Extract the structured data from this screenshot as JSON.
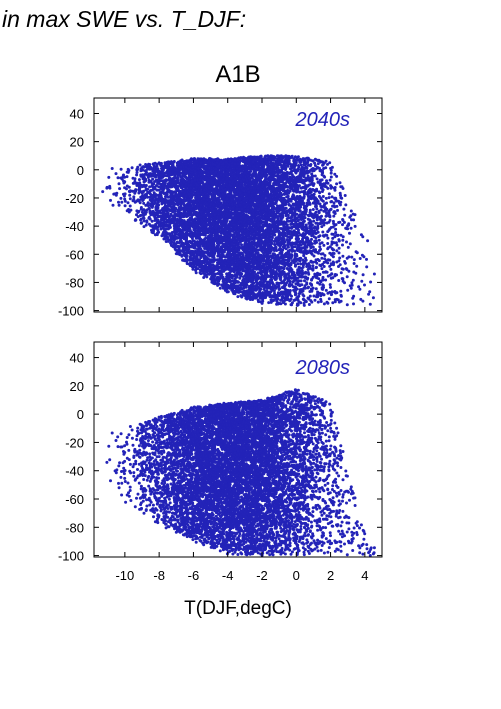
{
  "header_text": "in max SWE vs. T_DJF:",
  "colors": {
    "points": "#2323b8",
    "axes": "#000000"
  },
  "chart_data": [
    {
      "type": "scatter",
      "title": "A1B",
      "annotation": "2040s",
      "xlabel": "",
      "ylabel": "",
      "xlim": [
        -11.8,
        5.0
      ],
      "ylim": [
        -101,
        51
      ],
      "yticks": [
        40,
        20,
        0,
        -20,
        -40,
        -60,
        -80,
        -100
      ],
      "xticks": [
        -10,
        -8,
        -6,
        -4,
        -2,
        0,
        2,
        4
      ],
      "grid": false,
      "n_points": 9000,
      "cloud_description": "dense cloud spanning T -12..5 degC, change mostly between -100 and +12; upper edge near 0..+12, broadening downward toward warmer T",
      "envelope": [
        {
          "x": -12,
          "y_low": -20,
          "y_high": -2
        },
        {
          "x": -10,
          "y_low": -32,
          "y_high": 3
        },
        {
          "x": -8,
          "y_low": -48,
          "y_high": 5
        },
        {
          "x": -6,
          "y_low": -72,
          "y_high": 8
        },
        {
          "x": -4,
          "y_low": -88,
          "y_high": 8
        },
        {
          "x": -2,
          "y_low": -95,
          "y_high": 10
        },
        {
          "x": 0,
          "y_low": -97,
          "y_high": 10
        },
        {
          "x": 2,
          "y_low": -97,
          "y_high": 6
        },
        {
          "x": 4,
          "y_low": -96,
          "y_high": -45
        },
        {
          "x": 5,
          "y_low": -95,
          "y_high": -70
        }
      ]
    },
    {
      "type": "scatter",
      "title": "",
      "annotation": "2080s",
      "xlabel": "T(DJF,degC)",
      "ylabel": "",
      "xlim": [
        -11.8,
        5.0
      ],
      "ylim": [
        -101,
        51
      ],
      "yticks": [
        40,
        20,
        0,
        -20,
        -40,
        -60,
        -80,
        -100
      ],
      "xticks": [
        -10,
        -8,
        -6,
        -4,
        -2,
        0,
        2,
        4
      ],
      "xticklabels": [
        "-10",
        "-8",
        "-6",
        "-4",
        "-2",
        "0",
        "2",
        "4"
      ],
      "grid": false,
      "n_points": 9000,
      "cloud_description": "dense cloud shifted lower and warmer than 2040s; many points near -100 for T > -4",
      "envelope": [
        {
          "x": -12,
          "y_low": -45,
          "y_high": -18
        },
        {
          "x": -10,
          "y_low": -62,
          "y_high": -10
        },
        {
          "x": -8,
          "y_low": -78,
          "y_high": -2
        },
        {
          "x": -6,
          "y_low": -90,
          "y_high": 5
        },
        {
          "x": -4,
          "y_low": -99,
          "y_high": 8
        },
        {
          "x": -2,
          "y_low": -100,
          "y_high": 10
        },
        {
          "x": 0,
          "y_low": -100,
          "y_high": 18
        },
        {
          "x": 2,
          "y_low": -100,
          "y_high": 8
        },
        {
          "x": 4,
          "y_low": -100,
          "y_high": -85
        },
        {
          "x": 5,
          "y_low": -100,
          "y_high": -95
        }
      ]
    }
  ]
}
